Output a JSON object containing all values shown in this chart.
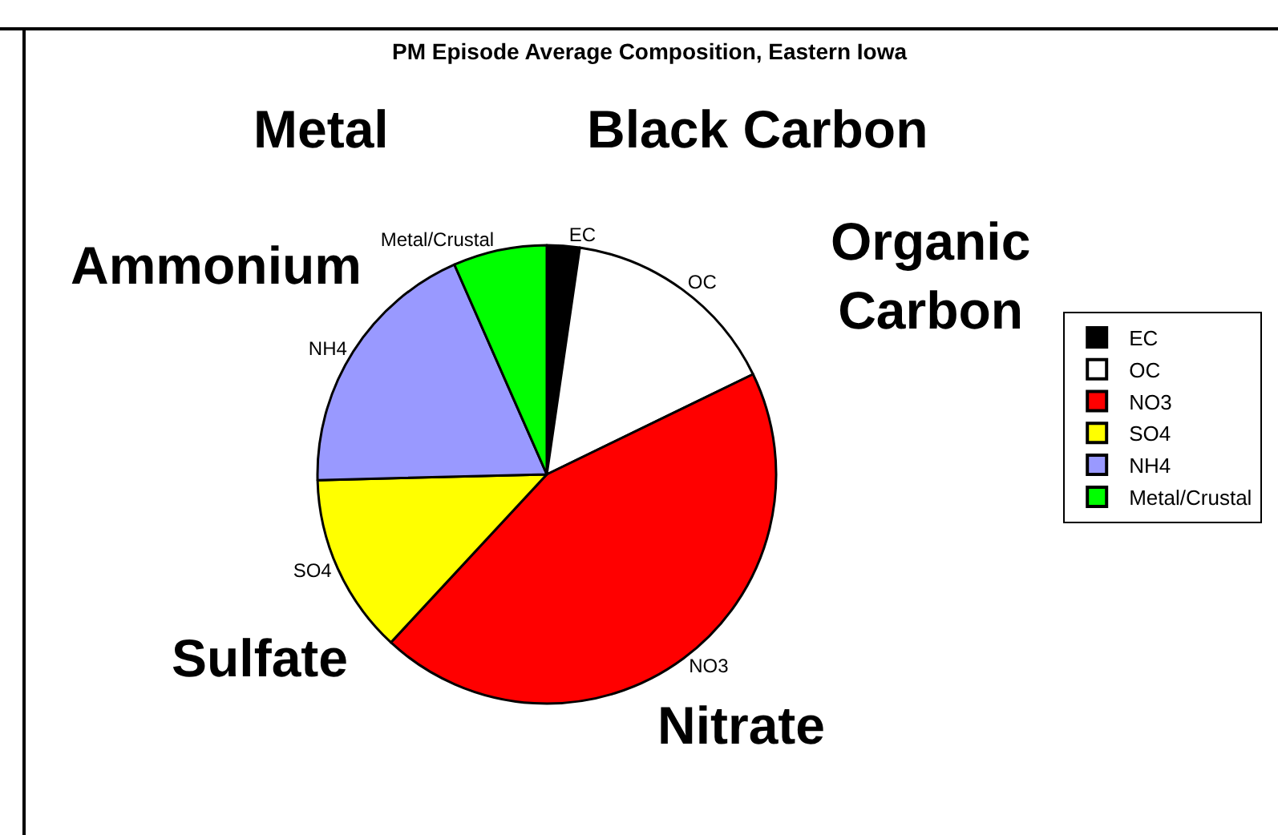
{
  "chart_data": {
    "type": "pie",
    "title": "PM Episode Average Composition, Eastern Iowa",
    "categories": [
      "EC",
      "OC",
      "NO3",
      "SO4",
      "NH4",
      "Metal/Crustal"
    ],
    "values": [
      2.3,
      15.5,
      44.1,
      12.7,
      18.8,
      6.6
    ],
    "colors": [
      "#000000",
      "#ffffff",
      "#ff0000",
      "#ffff00",
      "#9999ff",
      "#00ff00"
    ],
    "annotations": [
      "Metal",
      "Black Carbon",
      "Ammonium",
      "Organic Carbon",
      "Sulfate",
      "Nitrate"
    ],
    "legend": "right"
  }
}
